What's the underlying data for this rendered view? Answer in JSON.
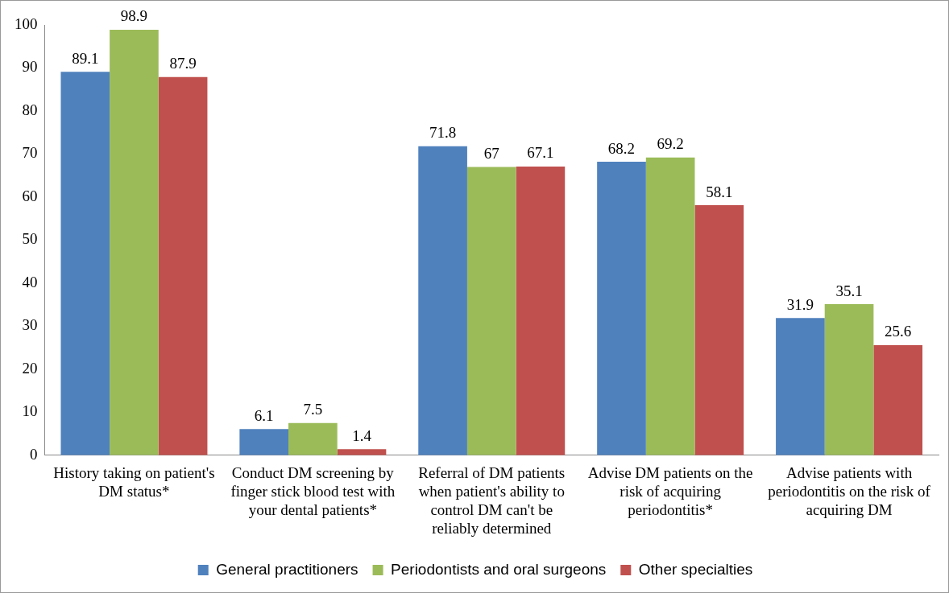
{
  "chart_data": {
    "type": "bar",
    "categories": [
      "History taking on patient's DM status*",
      "Conduct DM screening by finger stick blood test with your dental patients*",
      "Referral of DM patients when patient's ability to control DM can't be reliably determined",
      "Advise DM patients on the risk of acquiring periodontitis*",
      "Advise patients with periodontitis on the risk of acquiring DM"
    ],
    "series": [
      {
        "name": "General practitioners",
        "color": "#4f81bd",
        "values": [
          89.1,
          6.1,
          71.8,
          68.2,
          31.9
        ]
      },
      {
        "name": "Periodontists and oral surgeons",
        "color": "#9bbb59",
        "values": [
          98.9,
          7.5,
          67,
          69.2,
          35.1
        ]
      },
      {
        "name": "Other specialties",
        "color": "#c0504d",
        "values": [
          87.9,
          1.4,
          67.1,
          58.1,
          25.6
        ]
      }
    ],
    "ylim": [
      0,
      100
    ],
    "yticks": [
      0,
      10,
      20,
      30,
      40,
      50,
      60,
      70,
      80,
      90,
      100
    ],
    "grid": false,
    "legend": "bottom",
    "data_labels": true
  }
}
